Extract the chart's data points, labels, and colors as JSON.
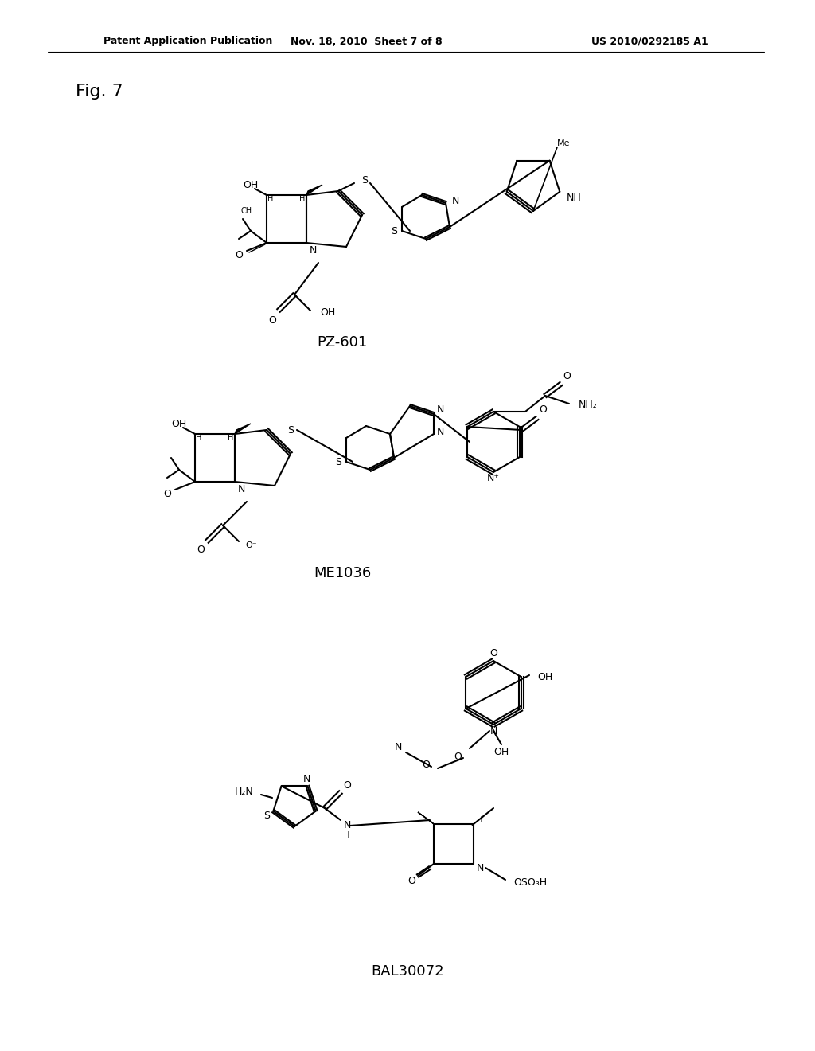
{
  "bg_color": "#ffffff",
  "header_left": "Patent Application Publication",
  "header_mid": "Nov. 18, 2010  Sheet 7 of 8",
  "header_right": "US 2010/0292185 A1",
  "fig_label": "Fig. 7",
  "compound1_label": "PZ-601",
  "compound2_label": "ME1036",
  "compound3_label": "BAL30072",
  "header_fontsize": 9,
  "fig_fontsize": 16,
  "compound_fontsize": 13
}
